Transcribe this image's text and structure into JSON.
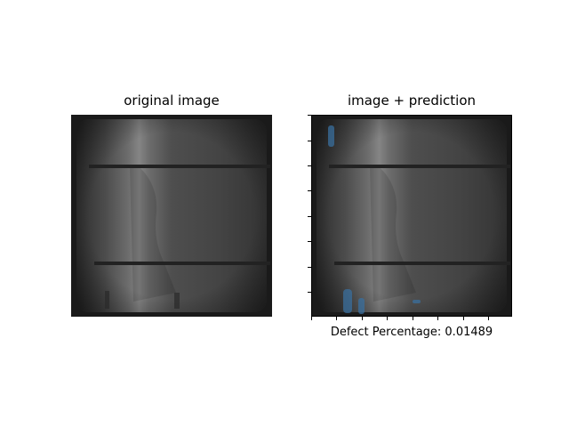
{
  "figure": {
    "left_title": "original image",
    "right_title": "image + prediction",
    "defect_label": "Defect Percentage: 0.01489"
  },
  "colors": {
    "cell_dark": "#1d1d1d",
    "cell_mid": "#4a4a4a",
    "cell_bright": "#8a8a8a",
    "busbar": "#222222",
    "defect_overlay": "#3a6f9e"
  }
}
